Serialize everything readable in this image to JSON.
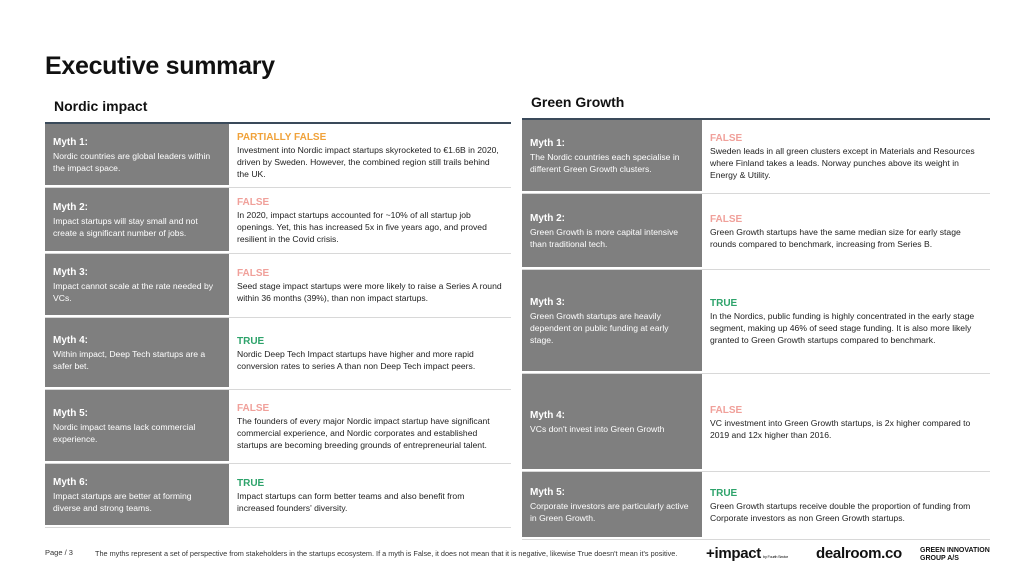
{
  "page_title": "Executive summary",
  "left": {
    "title": "Nordic impact",
    "rows": [
      {
        "myth_label": "Myth 1:",
        "myth_text": "Nordic countries are global leaders within the impact space.",
        "verdict": "PARTIALLY FALSE",
        "verdict_type": "partial",
        "text": "Investment into Nordic impact startups skyrocketed to €1.6B in 2020, driven by Sweden. However, the combined region still trails behind the UK."
      },
      {
        "myth_label": "Myth 2:",
        "myth_text": "Impact startups will stay small and not create a significant number of jobs.",
        "verdict": "FALSE",
        "verdict_type": "false",
        "text": "In 2020, impact startups accounted for ~10% of all startup job openings. Yet, this has increased 5x in five years ago, and proved resilient in the Covid crisis."
      },
      {
        "myth_label": "Myth 3:",
        "myth_text": "Impact cannot scale at the rate needed by VCs.",
        "verdict": "FALSE",
        "verdict_type": "false",
        "text": "Seed stage impact startups were more likely to raise a Series A round within 36 months (39%), than non impact startups."
      },
      {
        "myth_label": "Myth 4:",
        "myth_text": "Within impact, Deep Tech startups are a safer bet.",
        "verdict": "TRUE",
        "verdict_type": "true",
        "text": "Nordic Deep Tech Impact startups have higher and more rapid conversion rates to series A than non Deep Tech impact peers."
      },
      {
        "myth_label": "Myth 5:",
        "myth_text": "Nordic impact teams lack commercial experience.",
        "verdict": "FALSE",
        "verdict_type": "false",
        "text": "The founders of every major Nordic impact startup have significant commercial experience, and Nordic corporates and established startups are becoming breeding grounds of entrepreneurial talent."
      },
      {
        "myth_label": "Myth 6:",
        "myth_text": "Impact startups are better at forming diverse and strong teams.",
        "verdict": "TRUE",
        "verdict_type": "true",
        "text": "Impact startups can form better teams and also benefit from increased founders' diversity."
      }
    ]
  },
  "right": {
    "title": "Green Growth",
    "rows": [
      {
        "myth_label": "Myth 1:",
        "myth_text": "The Nordic countries each specialise in different Green Growth clusters.",
        "verdict": "FALSE",
        "verdict_type": "false",
        "text": "Sweden leads in all green clusters except in Materials and Resources where Finland takes a leads. Norway punches above its weight in Energy & Utility."
      },
      {
        "myth_label": "Myth 2:",
        "myth_text": "Green Growth is more capital intensive than traditional tech.",
        "verdict": "FALSE",
        "verdict_type": "false",
        "text": "Green Growth startups have the same median size for early stage rounds compared to benchmark, increasing from Series B."
      },
      {
        "myth_label": "Myth 3:",
        "myth_text": "Green Growth startups are heavily dependent on public funding at early stage.",
        "verdict": "TRUE",
        "verdict_type": "true",
        "text": "In the Nordics, public funding is highly concentrated in the early stage segment, making up 46% of seed stage funding. It is also more likely granted to Green Growth startups compared to benchmark."
      },
      {
        "myth_label": "Myth 4:",
        "myth_text": "VCs don't invest into Green Growth",
        "verdict": "FALSE",
        "verdict_type": "false",
        "text": "VC investment into Green Growth startups, is 2x higher compared to 2019 and 12x higher than 2016."
      },
      {
        "myth_label": "Myth 5:",
        "myth_text": "Corporate investors are particularly active in Green Growth.",
        "verdict": "TRUE",
        "verdict_type": "true",
        "text": "Green Growth startups receive double the proportion of funding from Corporate investors as non Green Growth startups."
      }
    ]
  },
  "footer": {
    "page": "Page / 3",
    "note": "The myths represent a set of perspective from stakeholders in the startups ecosystem. If a myth is False, it does not mean that it is negative, likewise True doesn't mean it's positive."
  },
  "logos": {
    "impact": "+impact",
    "impact_small": "by Fourth Sector",
    "dealroom": "dealroom.co",
    "gig_line1": "GREEN INNOVATION",
    "gig_line2": "GROUP A/S"
  },
  "colors": {
    "myth_bg": "#7f7f7f",
    "false": "#f0a09a",
    "partial": "#f0a23a",
    "true": "#2ea36b"
  }
}
